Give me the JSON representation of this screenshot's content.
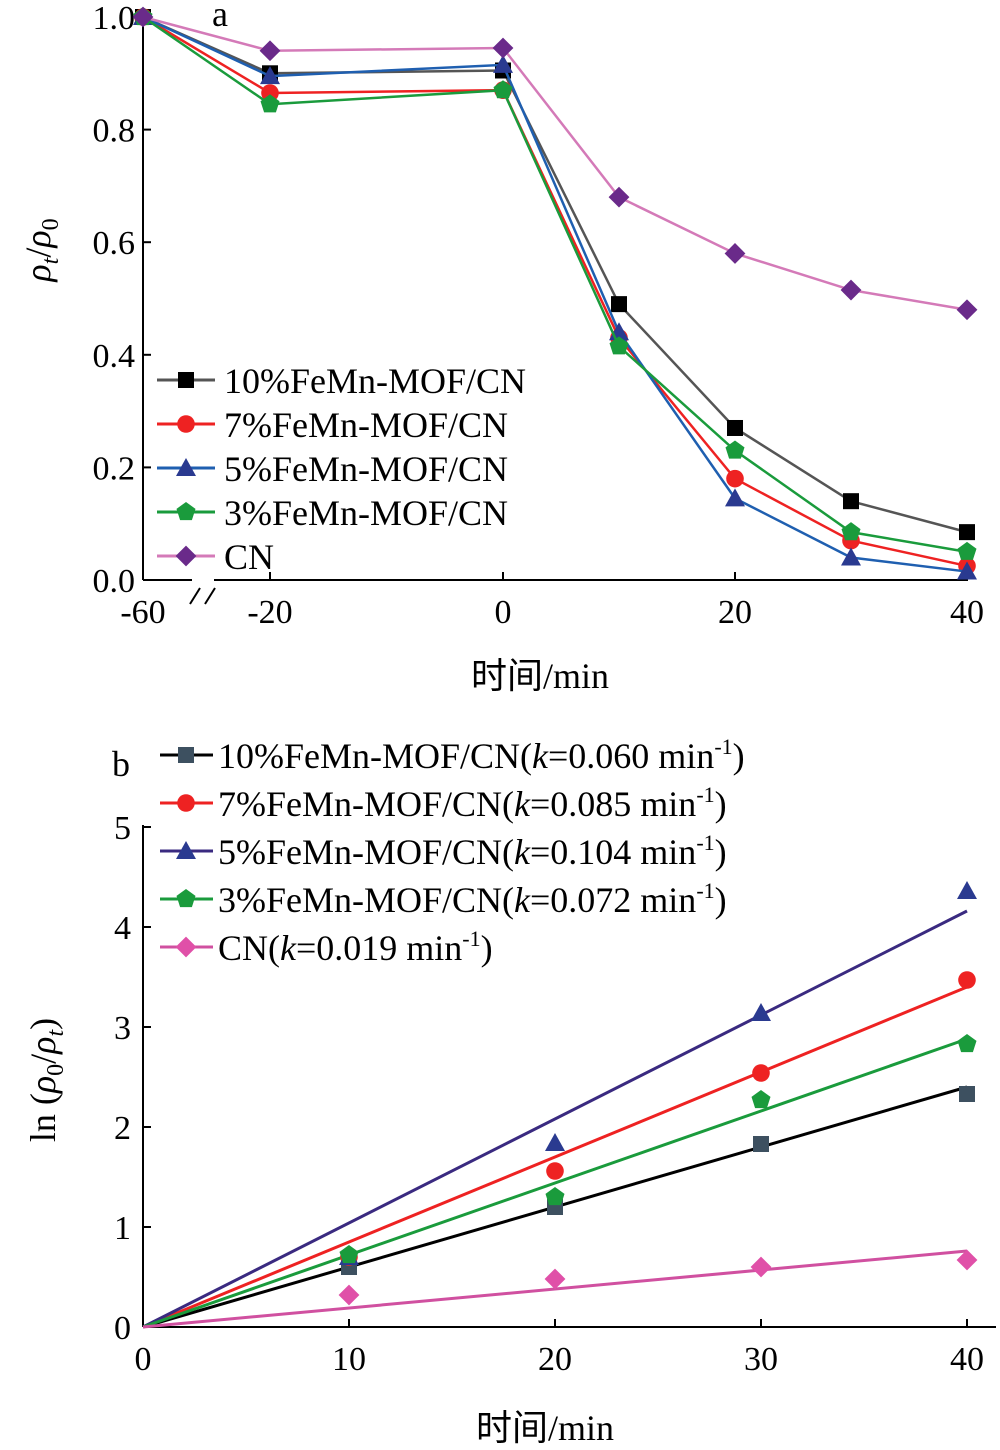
{
  "chart_data": [
    {
      "type": "line",
      "panel_label": "a",
      "xlabel": "时间/min",
      "ylabel_main": "ρ",
      "ylabel_sub1": "t",
      "ylabel_slash": "/",
      "ylabel_sub2": "0",
      "ylim": [
        0,
        1.0
      ],
      "x_axis_break": true,
      "x": [
        -60,
        -20,
        0,
        10,
        20,
        30,
        40
      ],
      "x_ticks": [
        "-60",
        "-20",
        "0",
        "20",
        "40"
      ],
      "y_ticks": [
        "0.0",
        "0.2",
        "0.4",
        "0.6",
        "0.8",
        "1.0"
      ],
      "legend_position": "lower-left",
      "series": [
        {
          "name": "10%FeMn-MOF/CN",
          "color": "#555555",
          "marker_color": "#000000",
          "marker": "square",
          "values": [
            1.0,
            0.9,
            0.905,
            0.49,
            0.27,
            0.14,
            0.085
          ]
        },
        {
          "name": "7%FeMn-MOF/CN",
          "color": "#ee2222",
          "marker_color": "#ee2222",
          "marker": "circle",
          "values": [
            1.0,
            0.865,
            0.87,
            0.43,
            0.18,
            0.07,
            0.025
          ]
        },
        {
          "name": "5%FeMn-MOF/CN",
          "color": "#1f5fb0",
          "marker_color": "#2a3a90",
          "marker": "triangle",
          "values": [
            1.0,
            0.895,
            0.915,
            0.44,
            0.145,
            0.04,
            0.015
          ]
        },
        {
          "name": "3%FeMn-MOF/CN",
          "color": "#1a9b3c",
          "marker_color": "#1a9b3c",
          "marker": "pentagon",
          "values": [
            1.0,
            0.845,
            0.87,
            0.415,
            0.23,
            0.085,
            0.05
          ]
        },
        {
          "name": "CN",
          "color": "#d47ab8",
          "marker_color": "#6a2a8a",
          "marker": "diamond",
          "values": [
            1.0,
            0.94,
            0.945,
            0.68,
            0.58,
            0.515,
            0.48
          ]
        }
      ]
    },
    {
      "type": "scatter",
      "panel_label": "b",
      "xlabel": "时间/min",
      "ylabel_prefix": "ln (",
      "ylabel_rho1": "ρ",
      "ylabel_sub1": "0",
      "ylabel_slash": "/",
      "ylabel_rho2": "ρ",
      "ylabel_sub2": "t",
      "ylabel_suffix": ")",
      "xlim": [
        0,
        40
      ],
      "ylim": [
        0,
        5
      ],
      "x": [
        0,
        10,
        20,
        30,
        40
      ],
      "x_ticks": [
        "0",
        "10",
        "20",
        "30",
        "40"
      ],
      "y_ticks": [
        "0",
        "1",
        "2",
        "3",
        "4",
        "5"
      ],
      "legend_position": "top-left",
      "series": [
        {
          "name": "10%FeMn-MOF/CN",
          "k_label": "k",
          "k_value": "=0.060 min",
          "k_sup": "-1",
          "color": "#3d5060",
          "line_color": "#000000",
          "marker": "square",
          "k": 0.06,
          "values": [
            0,
            0.6,
            1.2,
            1.83,
            2.33
          ]
        },
        {
          "name": "7%FeMn-MOF/CN",
          "k_label": "k",
          "k_value": "=0.085 min",
          "k_sup": "-1",
          "color": "#ee2222",
          "line_color": "#ee2222",
          "marker": "circle",
          "k": 0.085,
          "values": [
            0,
            0.7,
            1.56,
            2.54,
            3.47
          ]
        },
        {
          "name": "5%FeMn-MOF/CN",
          "k_label": "k",
          "k_value": "=0.104 min",
          "k_sup": "-1",
          "color": "#2a3a90",
          "line_color": "#3a2a80",
          "marker": "triangle",
          "k": 0.104,
          "values": [
            0,
            0.7,
            1.84,
            3.14,
            4.36
          ]
        },
        {
          "name": "3%FeMn-MOF/CN",
          "k_label": "k",
          "k_value": "=0.072 min",
          "k_sup": "-1",
          "color": "#1a9b3c",
          "line_color": "#1a9b3c",
          "marker": "pentagon",
          "k": 0.072,
          "values": [
            0,
            0.72,
            1.3,
            2.27,
            2.83
          ]
        },
        {
          "name": "CN",
          "k_label": "k",
          "k_value": "=0.019 min",
          "k_sup": "-1",
          "color": "#e050a8",
          "line_color": "#d050a0",
          "marker": "diamond",
          "k": 0.019,
          "values": [
            0,
            0.32,
            0.48,
            0.6,
            0.67
          ]
        }
      ]
    }
  ]
}
